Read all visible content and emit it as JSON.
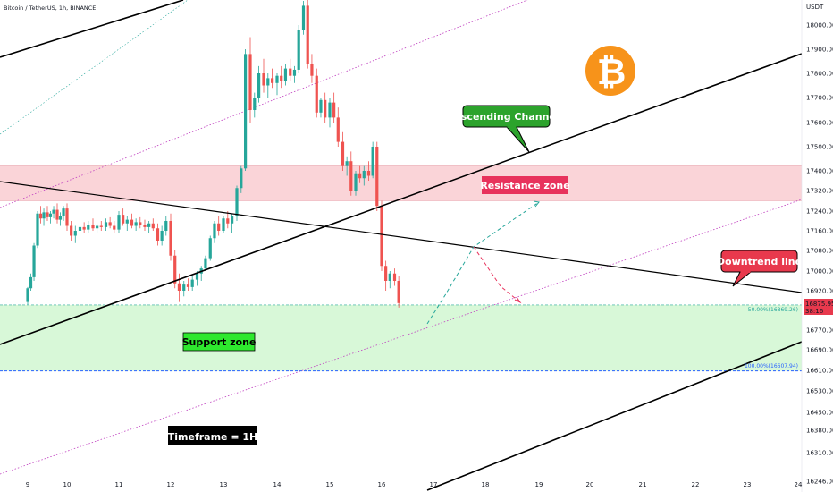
{
  "header": {
    "symbol": "Bitcoin / TetherUS, 1h, BINANCE"
  },
  "currency": "USDT",
  "price_label": {
    "price": "16875.95",
    "countdown": "38:16",
    "color": "#e8394d"
  },
  "chart_data": {
    "type": "candlestick",
    "title": "Bitcoin / TetherUS, 1h, BINANCE",
    "y_axis": {
      "unit": "USDT",
      "ticks": [
        16246.0,
        16310.0,
        16380.0,
        16450.0,
        16530.0,
        16610.0,
        16690.0,
        16770.0,
        16850.0,
        16920.0,
        17000.0,
        17080.0,
        17160.0,
        17240.0,
        17320.0,
        17400.0,
        17500.0,
        17600.0,
        17700.0,
        17800.0,
        17900.0,
        18000.0
      ]
    },
    "x_axis": {
      "ticks": [
        "9",
        "10",
        "11",
        "12",
        "13",
        "14",
        "15",
        "16",
        "17",
        "18",
        "19",
        "20",
        "21",
        "22",
        "23",
        "24"
      ]
    },
    "candles": [
      [
        9.0,
        16880,
        16935,
        16870,
        16930
      ],
      [
        9.08,
        16930,
        16990,
        16920,
        16975
      ],
      [
        9.16,
        16975,
        17110,
        16960,
        17100
      ],
      [
        9.25,
        17100,
        17240,
        17090,
        17230
      ],
      [
        9.33,
        17230,
        17260,
        17190,
        17210
      ],
      [
        9.41,
        17210,
        17250,
        17180,
        17235
      ],
      [
        9.5,
        17235,
        17260,
        17200,
        17215
      ],
      [
        9.58,
        17215,
        17240,
        17190,
        17230
      ],
      [
        9.66,
        17230,
        17260,
        17210,
        17245
      ],
      [
        9.75,
        17245,
        17270,
        17190,
        17205
      ],
      [
        9.83,
        17205,
        17235,
        17180,
        17220
      ],
      [
        9.91,
        17220,
        17260,
        17200,
        17250
      ],
      [
        10.0,
        17250,
        17270,
        17160,
        17180
      ],
      [
        10.08,
        17180,
        17200,
        17120,
        17140
      ],
      [
        10.16,
        17140,
        17180,
        17110,
        17160
      ],
      [
        10.25,
        17160,
        17200,
        17130,
        17175
      ],
      [
        10.33,
        17175,
        17195,
        17150,
        17165
      ],
      [
        10.41,
        17165,
        17200,
        17150,
        17185
      ],
      [
        10.5,
        17185,
        17210,
        17160,
        17170
      ],
      [
        10.58,
        17170,
        17190,
        17150,
        17180
      ],
      [
        10.66,
        17180,
        17200,
        17160,
        17175
      ],
      [
        10.75,
        17175,
        17210,
        17160,
        17195
      ],
      [
        10.83,
        17195,
        17215,
        17170,
        17180
      ],
      [
        10.91,
        17180,
        17200,
        17150,
        17165
      ],
      [
        11.0,
        17165,
        17240,
        17150,
        17225
      ],
      [
        11.08,
        17225,
        17250,
        17180,
        17190
      ],
      [
        11.16,
        17190,
        17220,
        17160,
        17205
      ],
      [
        11.25,
        17205,
        17230,
        17170,
        17180
      ],
      [
        11.33,
        17180,
        17210,
        17160,
        17195
      ],
      [
        11.41,
        17195,
        17215,
        17170,
        17185
      ],
      [
        11.5,
        17185,
        17205,
        17160,
        17175
      ],
      [
        11.58,
        17175,
        17200,
        17150,
        17190
      ],
      [
        11.66,
        17190,
        17210,
        17160,
        17170
      ],
      [
        11.75,
        17170,
        17190,
        17100,
        17120
      ],
      [
        11.83,
        17120,
        17180,
        17100,
        17160
      ],
      [
        11.91,
        17160,
        17220,
        17140,
        17200
      ],
      [
        12.0,
        17200,
        17230,
        17040,
        17060
      ],
      [
        12.08,
        17060,
        17080,
        16930,
        16950
      ],
      [
        12.16,
        16950,
        16990,
        16880,
        16920
      ],
      [
        12.25,
        16920,
        16960,
        16900,
        16945
      ],
      [
        12.33,
        16945,
        16970,
        16920,
        16935
      ],
      [
        12.41,
        16935,
        16980,
        16920,
        16965
      ],
      [
        12.5,
        16965,
        17000,
        16940,
        16990
      ],
      [
        12.58,
        16990,
        17020,
        16960,
        17010
      ],
      [
        12.66,
        17010,
        17060,
        17000,
        17050
      ],
      [
        12.75,
        17050,
        17140,
        17040,
        17130
      ],
      [
        12.83,
        17130,
        17200,
        17110,
        17190
      ],
      [
        12.91,
        17190,
        17220,
        17140,
        17160
      ],
      [
        13.0,
        17160,
        17220,
        17150,
        17210
      ],
      [
        13.08,
        17210,
        17240,
        17170,
        17190
      ],
      [
        13.16,
        17190,
        17230,
        17150,
        17220
      ],
      [
        13.25,
        17220,
        17340,
        17200,
        17330
      ],
      [
        13.33,
        17330,
        17420,
        17310,
        17410
      ],
      [
        13.41,
        17410,
        17900,
        17400,
        17880
      ],
      [
        13.5,
        17880,
        17950,
        17600,
        17650
      ],
      [
        13.58,
        17650,
        17720,
        17620,
        17700
      ],
      [
        13.66,
        17700,
        17830,
        17680,
        17800
      ],
      [
        13.75,
        17800,
        17860,
        17720,
        17750
      ],
      [
        13.83,
        17750,
        17800,
        17700,
        17780
      ],
      [
        13.91,
        17780,
        17820,
        17740,
        17760
      ],
      [
        14.0,
        17760,
        17800,
        17710,
        17790
      ],
      [
        14.08,
        17790,
        17830,
        17740,
        17770
      ],
      [
        14.16,
        17770,
        17840,
        17750,
        17820
      ],
      [
        14.25,
        17820,
        17860,
        17770,
        17790
      ],
      [
        14.33,
        17790,
        17830,
        17760,
        17815
      ],
      [
        14.41,
        17815,
        18000,
        17800,
        17980
      ],
      [
        14.5,
        17980,
        18100,
        17960,
        18080
      ],
      [
        14.58,
        18080,
        18120,
        17820,
        17840
      ],
      [
        14.66,
        17840,
        17880,
        17760,
        17790
      ],
      [
        14.75,
        17790,
        17820,
        17620,
        17640
      ],
      [
        14.83,
        17640,
        17700,
        17620,
        17690
      ],
      [
        14.91,
        17690,
        17720,
        17600,
        17620
      ],
      [
        15.0,
        17620,
        17700,
        17580,
        17680
      ],
      [
        15.08,
        17680,
        17720,
        17600,
        17620
      ],
      [
        15.16,
        17620,
        17660,
        17500,
        17520
      ],
      [
        15.25,
        17520,
        17560,
        17400,
        17420
      ],
      [
        15.33,
        17420,
        17460,
        17380,
        17440
      ],
      [
        15.41,
        17440,
        17480,
        17300,
        17320
      ],
      [
        15.5,
        17320,
        17400,
        17300,
        17390
      ],
      [
        15.58,
        17390,
        17420,
        17350,
        17370
      ],
      [
        15.66,
        17370,
        17420,
        17340,
        17400
      ],
      [
        15.75,
        17400,
        17440,
        17360,
        17380
      ],
      [
        15.83,
        17380,
        17520,
        17370,
        17500
      ],
      [
        15.91,
        17500,
        17520,
        17240,
        17260
      ],
      [
        16.0,
        17260,
        17280,
        17000,
        17020
      ],
      [
        16.08,
        17020,
        17040,
        16920,
        16960
      ],
      [
        16.16,
        16960,
        17000,
        16930,
        16990
      ],
      [
        16.25,
        16990,
        17010,
        16940,
        16960
      ],
      [
        16.33,
        16960,
        16980,
        16860,
        16876
      ]
    ],
    "annotations": [
      {
        "text": "Ascending Channel",
        "color": "#2ca32c"
      },
      {
        "text": "Resistance zone",
        "color": "#e8325c"
      },
      {
        "text": "Downtrend line",
        "color": "#e8394d"
      },
      {
        "text": "Support zone",
        "color": "#2ee82e"
      },
      {
        "text": "Timeframe = 1H",
        "color": "#000000"
      }
    ],
    "levels": [
      {
        "label": "50.00%(16869.26)",
        "value": 16869.26
      },
      {
        "label": "100.00%(16607.94)",
        "value": 16607.94
      }
    ],
    "zones": [
      {
        "name": "Resistance zone",
        "from": 17280,
        "to": 17420,
        "color": "#f8c5cb"
      },
      {
        "name": "Support zone",
        "from": 16607.94,
        "to": 16869.26,
        "color": "#d4f7d4"
      }
    ],
    "colors": {
      "up": "#26a69a",
      "down": "#ef5350"
    }
  },
  "badge": {
    "icon": "bitcoin-icon",
    "color": "#f7931a"
  }
}
